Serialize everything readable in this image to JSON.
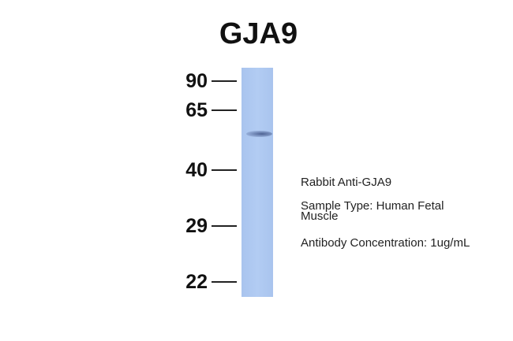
{
  "title": "GJA9",
  "markers": [
    "90",
    "65",
    "40",
    "29",
    "22"
  ],
  "info": {
    "antibody": "Rabbit Anti-GJA9",
    "sample_type_line1": "Sample Type: Human Fetal",
    "sample_type_line2": "Muscle",
    "concentration": "Antibody Concentration: 1ug/mL"
  },
  "colors": {
    "lane": "#aec8f0",
    "band": "#4a5a88"
  }
}
